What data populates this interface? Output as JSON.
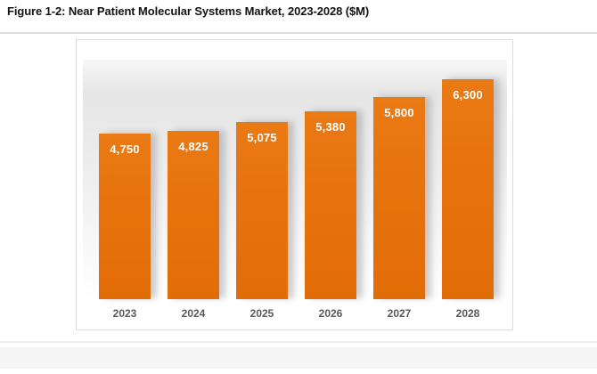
{
  "title": "Figure 1-2: Near Patient Molecular Systems Market, 2023-2028 ($M)",
  "chart_data": {
    "type": "bar",
    "title": "Figure 1-2: Near Patient Molecular Systems Market, 2023-2028 ($M)",
    "categories": [
      "2023",
      "2024",
      "2025",
      "2026",
      "2027",
      "2028"
    ],
    "values": [
      4750,
      4825,
      5075,
      5380,
      5800,
      6300
    ],
    "value_labels": [
      "4,750",
      "4,825",
      "5,075",
      "5,380",
      "5,800",
      "6,300"
    ],
    "xlabel": "",
    "ylabel": "",
    "ylim": [
      0,
      6900
    ],
    "grid": false,
    "legend": false,
    "bar_color": "#E7730E",
    "value_label_color": "#FFFFFF",
    "tick_label_color": "#595959",
    "plot_bg_top": "#E6E6E6",
    "plot_bg_bottom": "#FFFFFF"
  }
}
